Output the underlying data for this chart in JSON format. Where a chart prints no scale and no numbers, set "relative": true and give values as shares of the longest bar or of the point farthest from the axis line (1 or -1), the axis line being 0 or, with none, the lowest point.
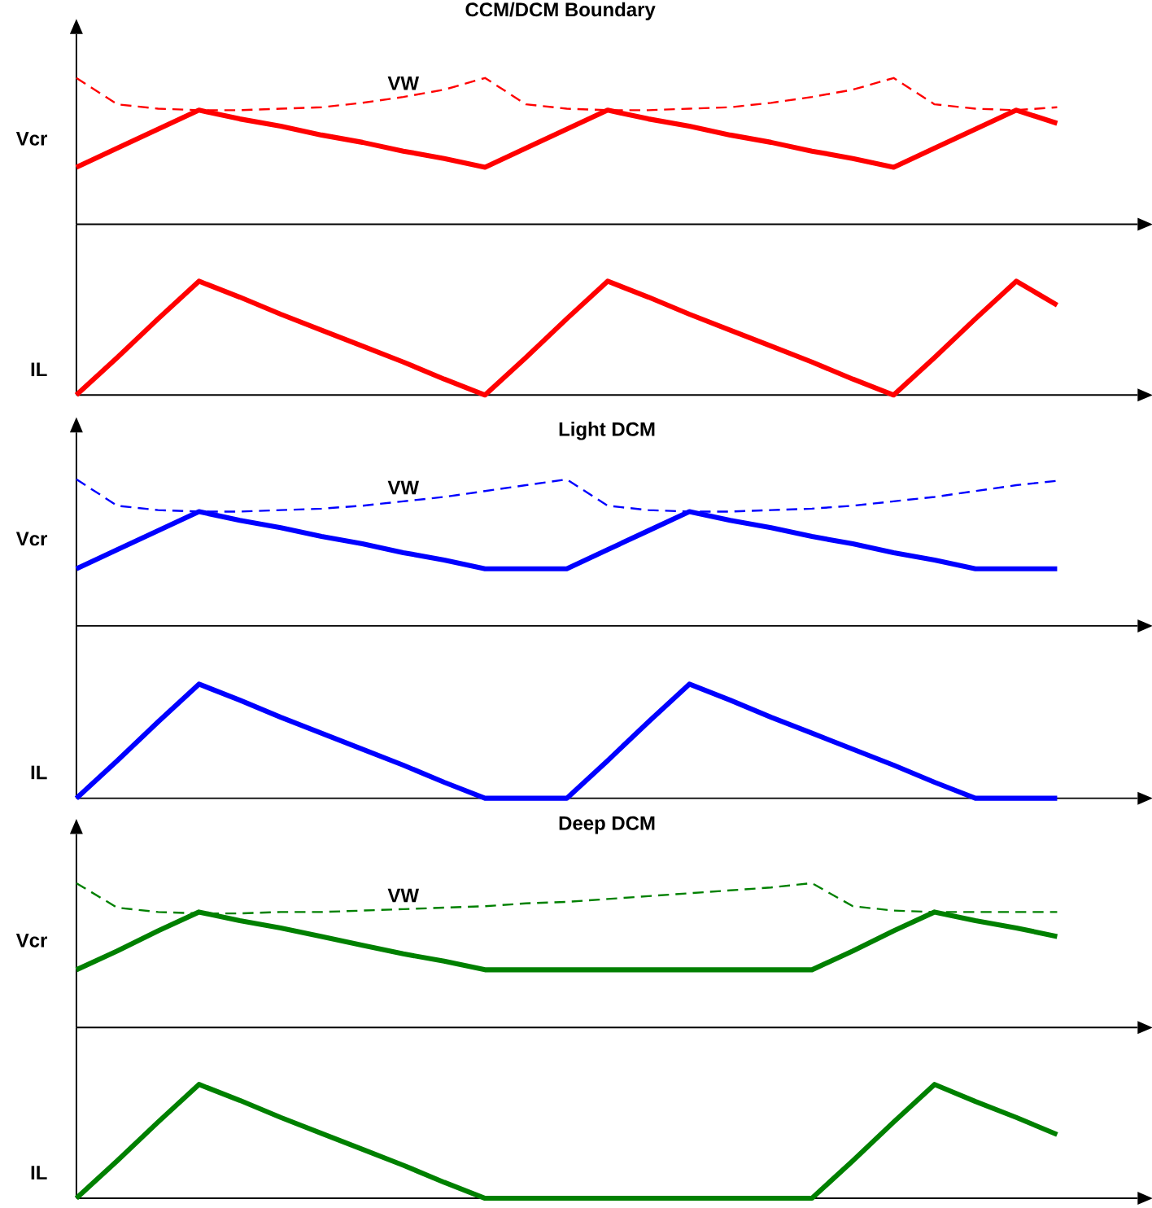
{
  "chart_data": [
    {
      "type": "line",
      "title": "CCM/DCM Boundary",
      "ylabel": "Vcr",
      "relative": true,
      "tick_labels": false,
      "categories": [
        null,
        null,
        null,
        null,
        null,
        null,
        null,
        null,
        null,
        null,
        null,
        null,
        null,
        null,
        null,
        null,
        null,
        null,
        null,
        null,
        null,
        null,
        null,
        null,
        null
      ],
      "series": [
        {
          "name": "VW",
          "color": "#ff0000",
          "line_style": "dashed",
          "values": [
            1.0,
            0.82,
            0.79,
            0.78,
            0.78,
            0.79,
            0.8,
            0.83,
            0.87,
            0.92,
            1.0,
            0.82,
            0.79,
            0.78,
            0.78,
            0.79,
            0.8,
            0.83,
            0.87,
            0.92,
            1.0,
            0.82,
            0.79,
            0.78,
            0.8
          ]
        },
        {
          "color": "#ff0000",
          "line_style": "solid",
          "values": [
            0.39,
            0.52,
            0.65,
            0.78,
            0.72,
            0.67,
            0.61,
            0.56,
            0.5,
            0.45,
            0.39,
            0.52,
            0.65,
            0.78,
            0.72,
            0.67,
            0.61,
            0.56,
            0.5,
            0.45,
            0.39,
            0.52,
            0.65,
            0.78,
            0.69
          ]
        }
      ]
    },
    {
      "type": "line",
      "ylabel": "IL",
      "relative": true,
      "tick_labels": false,
      "categories": [
        null,
        null,
        null,
        null,
        null,
        null,
        null,
        null,
        null,
        null,
        null,
        null,
        null,
        null,
        null,
        null,
        null,
        null,
        null,
        null,
        null,
        null,
        null,
        null,
        null
      ],
      "series": [
        {
          "color": "#ff0000",
          "line_style": "solid",
          "values": [
            0,
            0.33,
            0.67,
            1,
            0.86,
            0.71,
            0.57,
            0.43,
            0.29,
            0.14,
            0,
            0.33,
            0.67,
            1,
            0.86,
            0.71,
            0.57,
            0.43,
            0.29,
            0.14,
            0,
            0.33,
            0.67,
            1,
            0.79
          ]
        }
      ]
    },
    {
      "type": "line",
      "title": "Light DCM",
      "ylabel": "Vcr",
      "relative": true,
      "tick_labels": false,
      "categories": [
        null,
        null,
        null,
        null,
        null,
        null,
        null,
        null,
        null,
        null,
        null,
        null,
        null,
        null,
        null,
        null,
        null,
        null,
        null,
        null,
        null,
        null,
        null,
        null,
        null
      ],
      "series": [
        {
          "name": "VW",
          "color": "#0000ff",
          "line_style": "dashed",
          "values": [
            1.0,
            0.82,
            0.79,
            0.78,
            0.78,
            0.79,
            0.8,
            0.82,
            0.85,
            0.88,
            0.92,
            0.96,
            1.0,
            0.82,
            0.79,
            0.78,
            0.78,
            0.79,
            0.8,
            0.82,
            0.85,
            0.88,
            0.92,
            0.96,
            0.99
          ]
        },
        {
          "color": "#0000ff",
          "line_style": "solid",
          "values": [
            0.39,
            0.52,
            0.65,
            0.78,
            0.72,
            0.67,
            0.61,
            0.56,
            0.5,
            0.45,
            0.39,
            0.39,
            0.39,
            0.52,
            0.65,
            0.78,
            0.72,
            0.67,
            0.61,
            0.56,
            0.5,
            0.45,
            0.39,
            0.39,
            0.39
          ]
        }
      ]
    },
    {
      "type": "line",
      "ylabel": "IL",
      "relative": true,
      "tick_labels": false,
      "categories": [
        null,
        null,
        null,
        null,
        null,
        null,
        null,
        null,
        null,
        null,
        null,
        null,
        null,
        null,
        null,
        null,
        null,
        null,
        null,
        null,
        null,
        null,
        null,
        null,
        null
      ],
      "series": [
        {
          "color": "#0000ff",
          "line_style": "solid",
          "values": [
            0,
            0.33,
            0.67,
            1,
            0.86,
            0.71,
            0.57,
            0.43,
            0.29,
            0.14,
            0,
            0,
            0,
            0.33,
            0.67,
            1,
            0.86,
            0.71,
            0.57,
            0.43,
            0.29,
            0.14,
            0,
            0,
            0
          ]
        }
      ]
    },
    {
      "type": "line",
      "title": "Deep DCM",
      "ylabel": "Vcr",
      "relative": true,
      "tick_labels": false,
      "categories": [
        null,
        null,
        null,
        null,
        null,
        null,
        null,
        null,
        null,
        null,
        null,
        null,
        null,
        null,
        null,
        null,
        null,
        null,
        null,
        null,
        null,
        null,
        null,
        null,
        null
      ],
      "series": [
        {
          "name": "VW",
          "color": "#008000",
          "line_style": "dashed",
          "values": [
            1.0,
            0.83,
            0.8,
            0.79,
            0.79,
            0.8,
            0.8,
            0.81,
            0.82,
            0.83,
            0.84,
            0.86,
            0.87,
            0.89,
            0.91,
            0.93,
            0.95,
            0.97,
            1.0,
            0.84,
            0.81,
            0.8,
            0.8,
            0.8,
            0.8
          ]
        },
        {
          "color": "#008000",
          "line_style": "solid",
          "values": [
            0.4,
            0.53,
            0.67,
            0.8,
            0.74,
            0.69,
            0.63,
            0.57,
            0.51,
            0.46,
            0.4,
            0.4,
            0.4,
            0.4,
            0.4,
            0.4,
            0.4,
            0.4,
            0.4,
            0.53,
            0.67,
            0.8,
            0.74,
            0.69,
            0.63
          ]
        }
      ]
    },
    {
      "type": "line",
      "ylabel": "IL",
      "relative": true,
      "tick_labels": false,
      "categories": [
        null,
        null,
        null,
        null,
        null,
        null,
        null,
        null,
        null,
        null,
        null,
        null,
        null,
        null,
        null,
        null,
        null,
        null,
        null,
        null,
        null,
        null,
        null,
        null,
        null
      ],
      "series": [
        {
          "color": "#008000",
          "line_style": "solid",
          "values": [
            0,
            0.33,
            0.67,
            1,
            0.86,
            0.71,
            0.57,
            0.43,
            0.29,
            0.14,
            0,
            0,
            0,
            0,
            0,
            0,
            0,
            0,
            0,
            0.33,
            0.67,
            1,
            0.85,
            0.71,
            0.56
          ]
        }
      ]
    }
  ]
}
